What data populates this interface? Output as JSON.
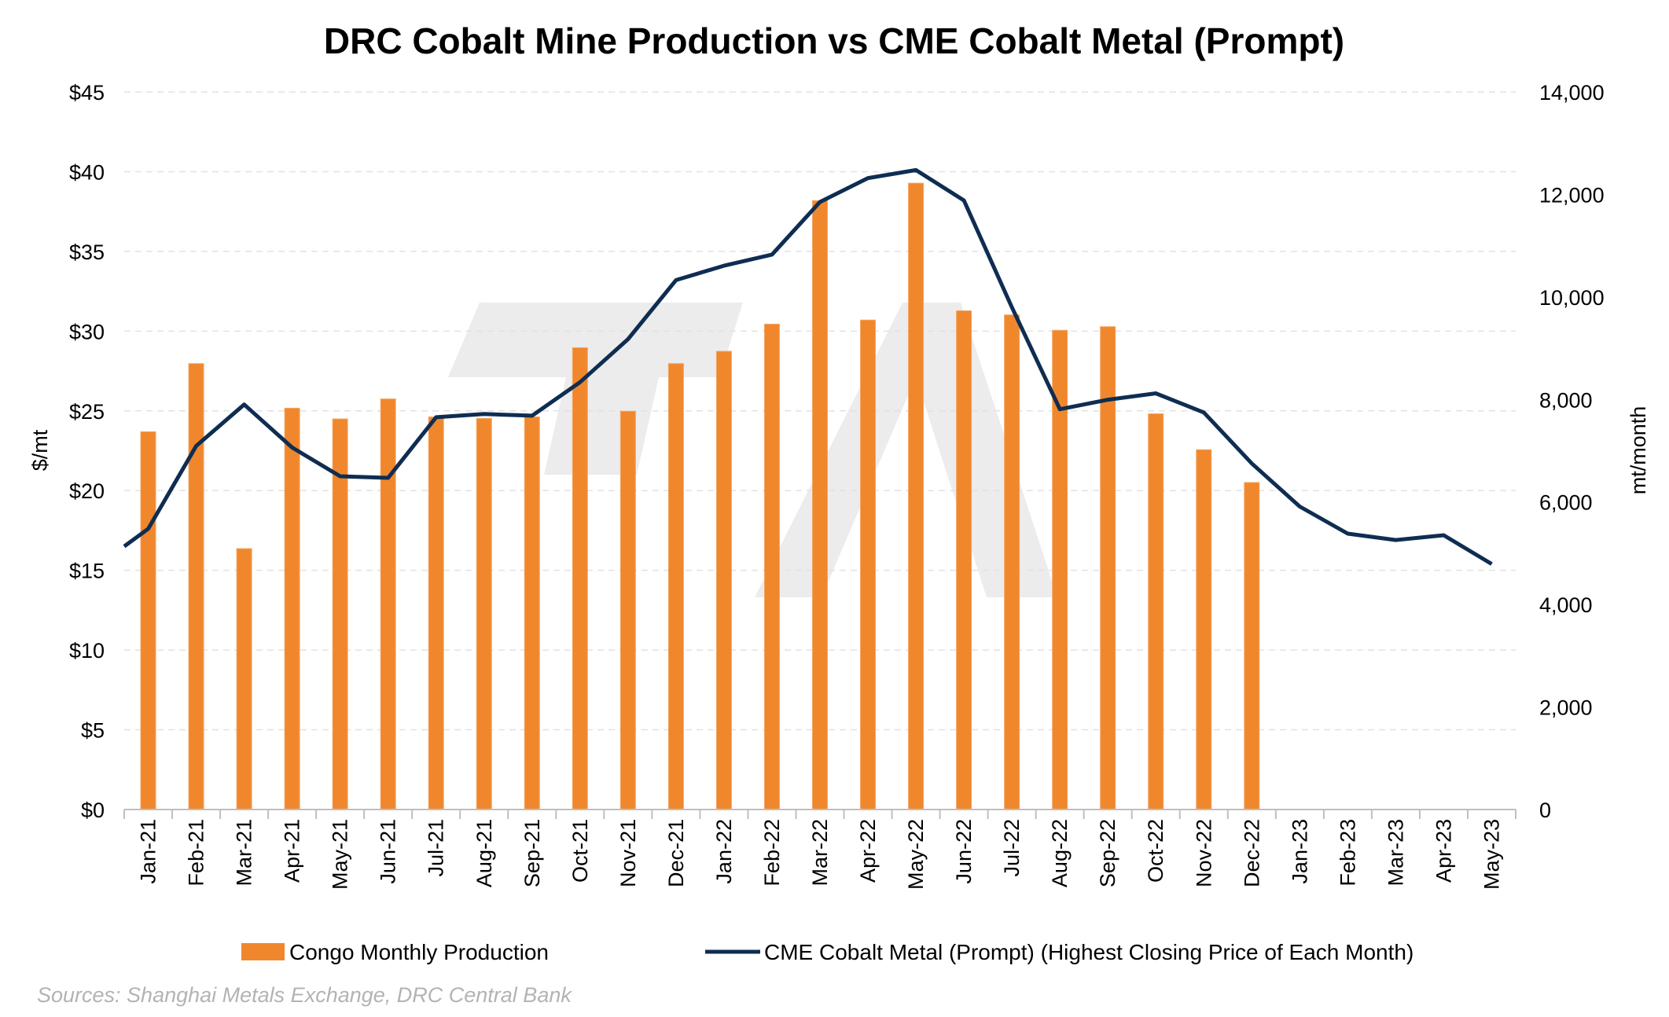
{
  "chart_data": {
    "type": "bar+line",
    "title": "DRC Cobalt Mine Production vs CME Cobalt Metal (Prompt)",
    "ylabel_left": "$/mt",
    "ylabel_right": "mt/month",
    "ylim_left": [
      0,
      45
    ],
    "ylim_right": [
      0,
      14000
    ],
    "yticks_left": [
      "$0",
      "$5",
      "$10",
      "$15",
      "$20",
      "$25",
      "$30",
      "$35",
      "$40",
      "$45"
    ],
    "yticks_right": [
      "0",
      "2,000",
      "4,000",
      "6,000",
      "8,000",
      "10,000",
      "12,000",
      "14,000"
    ],
    "grid": "horizontal dashed",
    "legend_position": "bottom",
    "categories": [
      "Jan-21",
      "Feb-21",
      "Mar-21",
      "Apr-21",
      "May-21",
      "Jun-21",
      "Jul-21",
      "Aug-21",
      "Sep-21",
      "Oct-21",
      "Nov-21",
      "Dec-21",
      "Jan-22",
      "Feb-22",
      "Mar-22",
      "Apr-22",
      "May-22",
      "Jun-22",
      "Jul-22",
      "Aug-22",
      "Sep-22",
      "Oct-22",
      "Nov-22",
      "Dec-22",
      "Jan-23",
      "Feb-23",
      "Mar-23",
      "Apr-23",
      "May-23"
    ],
    "series": [
      {
        "name": "Congo Monthly Production",
        "kind": "bar",
        "axis": "right",
        "color": "#F0872D",
        "values": [
          7370,
          8700,
          5090,
          7830,
          7620,
          8010,
          7660,
          7630,
          7660,
          9010,
          7770,
          8700,
          8940,
          9470,
          11880,
          9550,
          12220,
          9730,
          9650,
          9350,
          9420,
          7720,
          7020,
          6380,
          null,
          null,
          null,
          null,
          null
        ]
      },
      {
        "name": "CME Cobalt Metal (Prompt) (Highest Closing Price of Each Month)",
        "kind": "line",
        "axis": "left",
        "color": "#0F2D52",
        "start_value": 16.5,
        "values": [
          17.6,
          22.8,
          25.4,
          22.7,
          20.9,
          20.8,
          24.6,
          24.8,
          24.7,
          26.8,
          29.5,
          33.2,
          34.1,
          34.8,
          38.1,
          39.6,
          40.1,
          38.2,
          31.5,
          25.1,
          25.7,
          26.1,
          24.9,
          21.7,
          19.0,
          17.3,
          16.9,
          17.2,
          15.4
        ]
      }
    ]
  },
  "legend": {
    "bar_label": "Congo Monthly Production",
    "line_label": "CME Cobalt Metal (Prompt) (Highest Closing Price of Each Month)"
  },
  "source_note": "Sources: Shanghai Metals Exchange, DRC Central Bank",
  "watermark_text": "TA"
}
